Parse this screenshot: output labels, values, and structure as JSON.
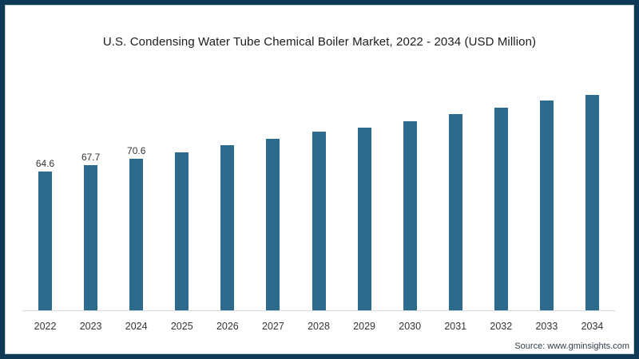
{
  "title": "U.S. Condensing Water Tube Chemical Boiler Market, 2022 - 2034 (USD Million)",
  "source": "Source: www.gminsights.com",
  "colors": {
    "bar": "#2d6b8e",
    "frame_border": "#0e3a57",
    "axis_line": "#d9d9d9",
    "title_text": "#1c1c1c",
    "label_text": "#333333"
  },
  "chart_data": {
    "type": "bar",
    "title": "U.S. Condensing Water Tube Chemical Boiler Market, 2022 - 2034 (USD Million)",
    "xlabel": "",
    "ylabel": "",
    "categories": [
      "2022",
      "2023",
      "2024",
      "2025",
      "2026",
      "2027",
      "2028",
      "2029",
      "2030",
      "2031",
      "2032",
      "2033",
      "2034"
    ],
    "values": [
      64.6,
      67.7,
      70.6,
      73.5,
      76.8,
      79.7,
      83.0,
      85.1,
      88.1,
      91.2,
      94.4,
      97.4,
      100.0
    ],
    "value_labels": [
      "64.6",
      "67.7",
      "70.6",
      "",
      "",
      "",
      "",
      "",
      "",
      "",
      "",
      "",
      ""
    ],
    "ylim": [
      0,
      105
    ],
    "grid": false,
    "legend": "none",
    "bar_color": "#2d6b8e"
  }
}
